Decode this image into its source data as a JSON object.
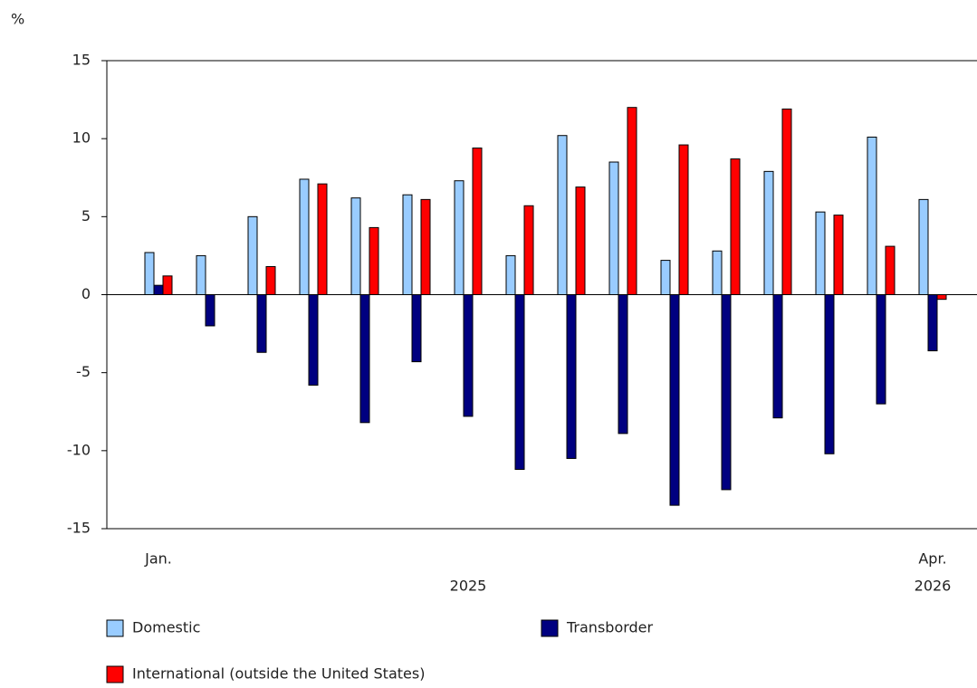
{
  "chart_data": {
    "type": "bar",
    "y_unit": "%",
    "categories": [
      "Jan.",
      null,
      null,
      null,
      null,
      null,
      null,
      null,
      null,
      null,
      null,
      null,
      null,
      null,
      null,
      "Apr."
    ],
    "category_groups": [
      "2025",
      "2026"
    ],
    "series": [
      {
        "name": "Domestic",
        "color": "#99ccff",
        "values": [
          2.7,
          2.5,
          5.0,
          7.4,
          6.2,
          6.4,
          7.3,
          2.5,
          10.2,
          8.5,
          2.2,
          2.8,
          7.9,
          5.3,
          10.1,
          6.1
        ]
      },
      {
        "name": "Transborder",
        "color": "#000080",
        "values": [
          0.6,
          -2.0,
          -3.7,
          -5.8,
          -8.2,
          -4.3,
          -7.8,
          -11.2,
          -10.5,
          -8.9,
          -13.5,
          -12.5,
          -7.9,
          -10.2,
          -7.0,
          -3.6
        ]
      },
      {
        "name": "International (outside the United States)",
        "color": "#ff0000",
        "values": [
          1.2,
          0.0,
          1.8,
          7.1,
          4.3,
          6.1,
          9.4,
          5.7,
          6.9,
          12.0,
          9.6,
          8.7,
          11.9,
          5.1,
          3.1,
          -0.3
        ]
      }
    ],
    "ylim": [
      -15,
      15
    ],
    "yticks": [
      -15,
      -10,
      -5,
      0,
      5,
      10,
      15
    ]
  }
}
